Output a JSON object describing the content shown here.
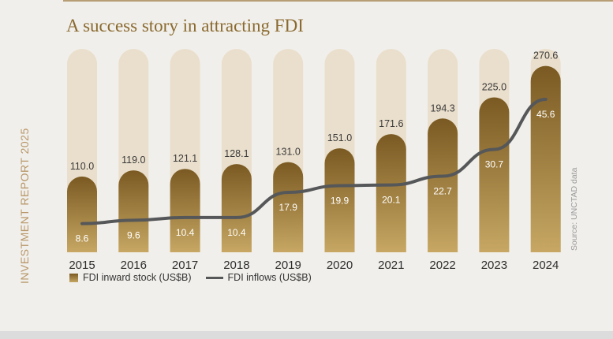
{
  "title": "A success story in attracting FDI",
  "side_label": "INVESTMENT REPORT 2025",
  "source": "Source: UNCTAD data",
  "colors": {
    "title": "#8a6a2f",
    "bar_track": "#eadfcc",
    "bar_fill_top": "#7a5a22",
    "bar_fill_bottom": "#c7a763",
    "line": "#555759"
  },
  "chart_data": {
    "type": "bar",
    "categories": [
      "2015",
      "2016",
      "2017",
      "2018",
      "2019",
      "2020",
      "2021",
      "2022",
      "2023",
      "2024"
    ],
    "series": [
      {
        "name": "FDI inward stock (US$B)",
        "type": "bar",
        "values": [
          110.0,
          119.0,
          121.1,
          128.1,
          131.0,
          151.0,
          171.6,
          194.3,
          225.0,
          270.6
        ],
        "labels": [
          "110.0",
          "119.0",
          "121.1",
          "128.1",
          "131.0",
          "151.0",
          "171.6",
          "194.3",
          "225.0",
          "270.6"
        ]
      },
      {
        "name": "FDI inflows (US$B)",
        "type": "line",
        "values": [
          8.6,
          9.6,
          10.4,
          10.4,
          17.9,
          19.9,
          20.1,
          22.7,
          30.7,
          45.6
        ],
        "labels": [
          "8.6",
          "9.6",
          "10.4",
          "10.4",
          "17.9",
          "19.9",
          "20.1",
          "22.7",
          "30.7",
          "45.6"
        ]
      }
    ],
    "legend": "bottom-left",
    "grid": false
  }
}
